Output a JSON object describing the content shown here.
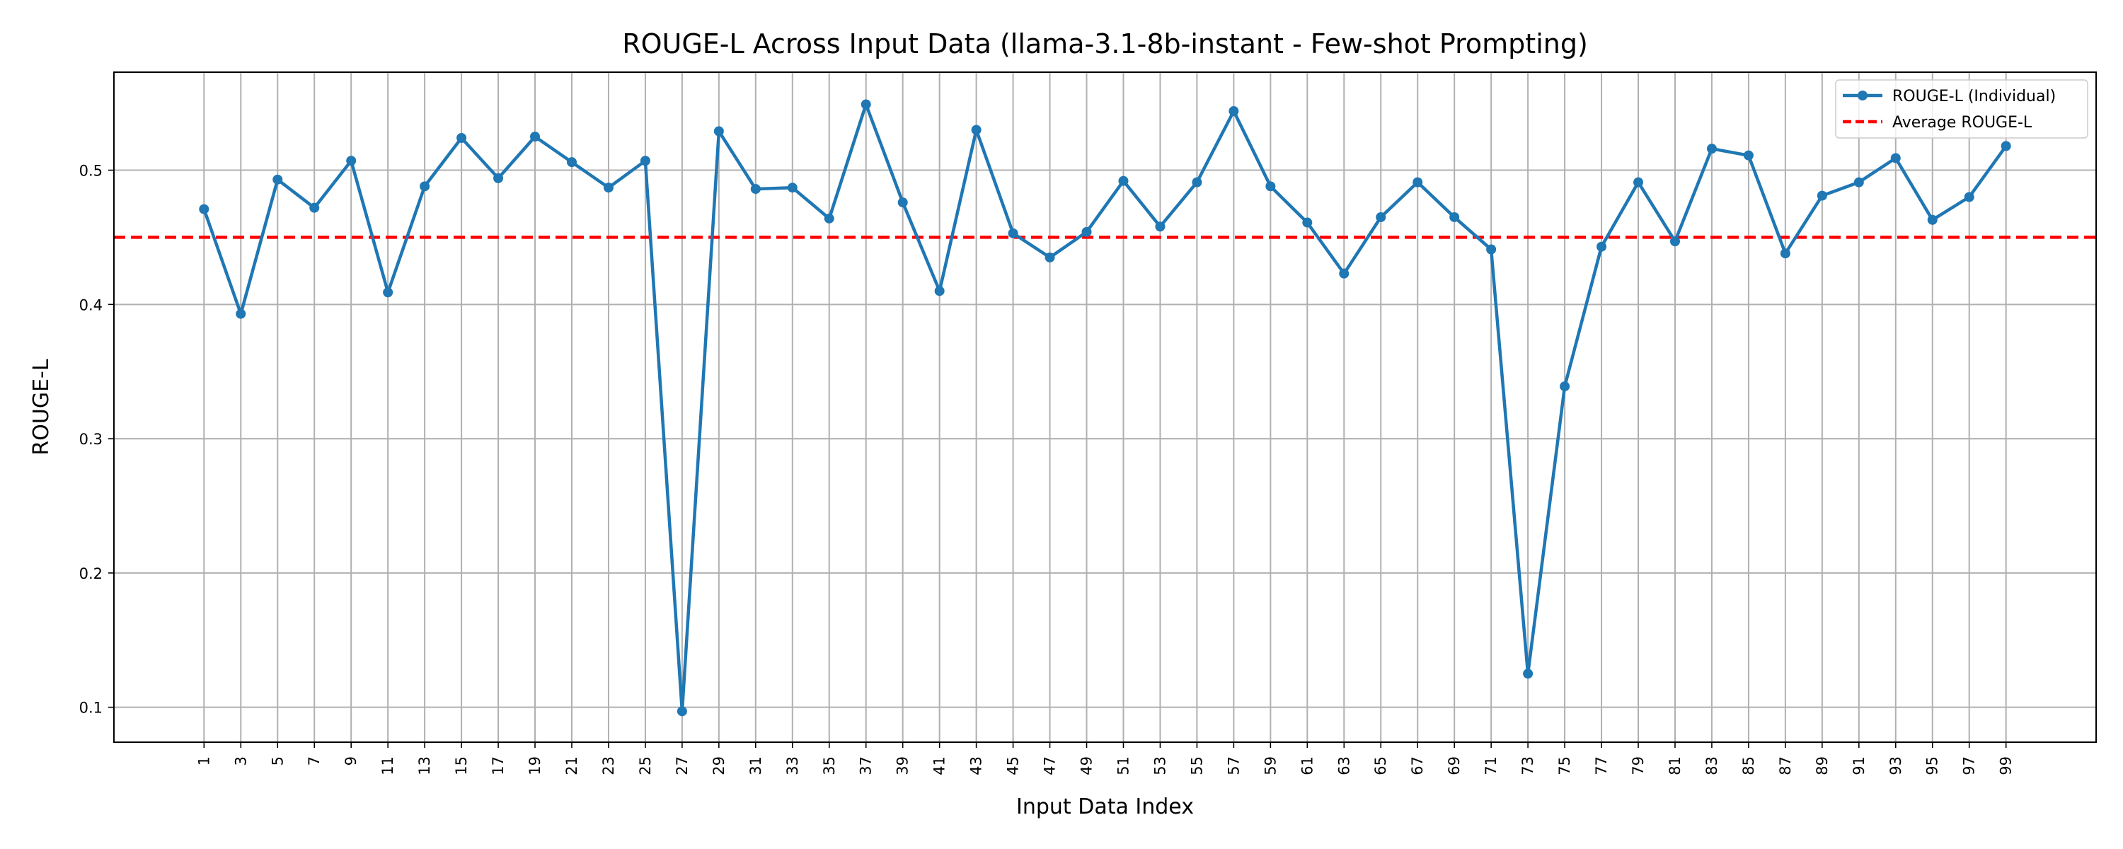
{
  "chart_data": {
    "type": "line",
    "title": "ROUGE-L Across Input Data (llama-3.1-8b-instant - Few-shot Prompting)",
    "xlabel": "Input Data Index",
    "ylabel": "ROUGE-L",
    "x": [
      1,
      3,
      5,
      7,
      9,
      11,
      13,
      15,
      17,
      19,
      21,
      23,
      25,
      27,
      29,
      31,
      33,
      35,
      37,
      39,
      41,
      43,
      45,
      47,
      49,
      51,
      53,
      55,
      57,
      59,
      61,
      63,
      65,
      67,
      69,
      71,
      73,
      75,
      77,
      79,
      81,
      83,
      85,
      87,
      89,
      91,
      93,
      95,
      97,
      99
    ],
    "xticks": [
      "1",
      "3",
      "5",
      "7",
      "9",
      "11",
      "13",
      "15",
      "17",
      "19",
      "21",
      "23",
      "25",
      "27",
      "29",
      "31",
      "33",
      "35",
      "37",
      "39",
      "41",
      "43",
      "45",
      "47",
      "49",
      "51",
      "53",
      "55",
      "57",
      "59",
      "61",
      "63",
      "65",
      "67",
      "69",
      "71",
      "73",
      "75",
      "77",
      "79",
      "81",
      "83",
      "85",
      "87",
      "89",
      "91",
      "93",
      "95",
      "97",
      "99"
    ],
    "yticks": [
      "0.1",
      "0.2",
      "0.3",
      "0.4",
      "0.5"
    ],
    "ytick_values": [
      0.1,
      0.2,
      0.3,
      0.4,
      0.5
    ],
    "xlim": [
      -3.9,
      103.9
    ],
    "ylim": [
      0.074,
      0.573
    ],
    "grid": true,
    "legend_position": "top-right",
    "series": [
      {
        "name": "ROUGE-L (Individual)",
        "color": "#1f77b4",
        "style": "solid-with-markers",
        "values": [
          0.471,
          0.393,
          0.493,
          0.472,
          0.507,
          0.409,
          0.488,
          0.524,
          0.494,
          0.525,
          0.506,
          0.487,
          0.507,
          0.097,
          0.529,
          0.486,
          0.487,
          0.464,
          0.549,
          0.476,
          0.41,
          0.53,
          0.453,
          0.435,
          0.454,
          0.492,
          0.458,
          0.491,
          0.544,
          0.488,
          0.461,
          0.423,
          0.465,
          0.491,
          0.465,
          0.441,
          0.125,
          0.339,
          0.443,
          0.491,
          0.447,
          0.516,
          0.511,
          0.438,
          0.481,
          0.491,
          0.509,
          0.463,
          0.48,
          0.518
        ]
      },
      {
        "name": "Average ROUGE-L",
        "color": "#ff0000",
        "style": "dashed",
        "value": 0.45
      }
    ]
  }
}
